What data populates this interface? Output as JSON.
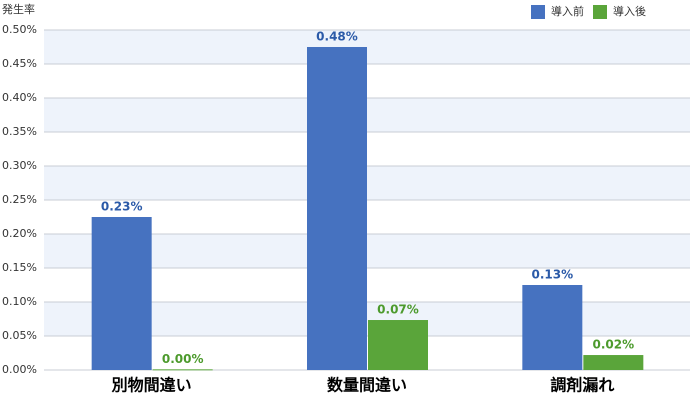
{
  "chart_data": {
    "type": "bar",
    "ylabel": "発生率",
    "categories": [
      "別物間違い",
      "数量間違い",
      "調剤漏れ"
    ],
    "series": [
      {
        "name": "導入前",
        "color": "#4672c0",
        "label_color": "#2b5aa8",
        "values": [
          0.225,
          0.475,
          0.125
        ],
        "value_labels": [
          "0.23%",
          "0.48%",
          "0.13%"
        ]
      },
      {
        "name": "導入後",
        "color": "#5aa53a",
        "label_color": "#4c9a2c",
        "values": [
          0.001,
          0.0735,
          0.022
        ],
        "value_labels": [
          "0.00%",
          "0.07%",
          "0.02%"
        ]
      }
    ],
    "ylim": [
      0,
      0.5
    ],
    "yticks": [
      {
        "value": 0,
        "label": "0.00%"
      },
      {
        "value": 0.05,
        "label": "0.05%"
      },
      {
        "value": 0.1,
        "label": "0.10%"
      },
      {
        "value": 0.15,
        "label": "0.15%"
      },
      {
        "value": 0.2,
        "label": "0.20%"
      },
      {
        "value": 0.25,
        "label": "0.25%"
      },
      {
        "value": 0.3,
        "label": "0.30%"
      },
      {
        "value": 0.35,
        "label": "0.35%"
      },
      {
        "value": 0.4,
        "label": "0.40%"
      },
      {
        "value": 0.45,
        "label": "0.45%"
      },
      {
        "value": 0.5,
        "label": "0.50%"
      }
    ],
    "grid": true,
    "legend": "top-right"
  }
}
